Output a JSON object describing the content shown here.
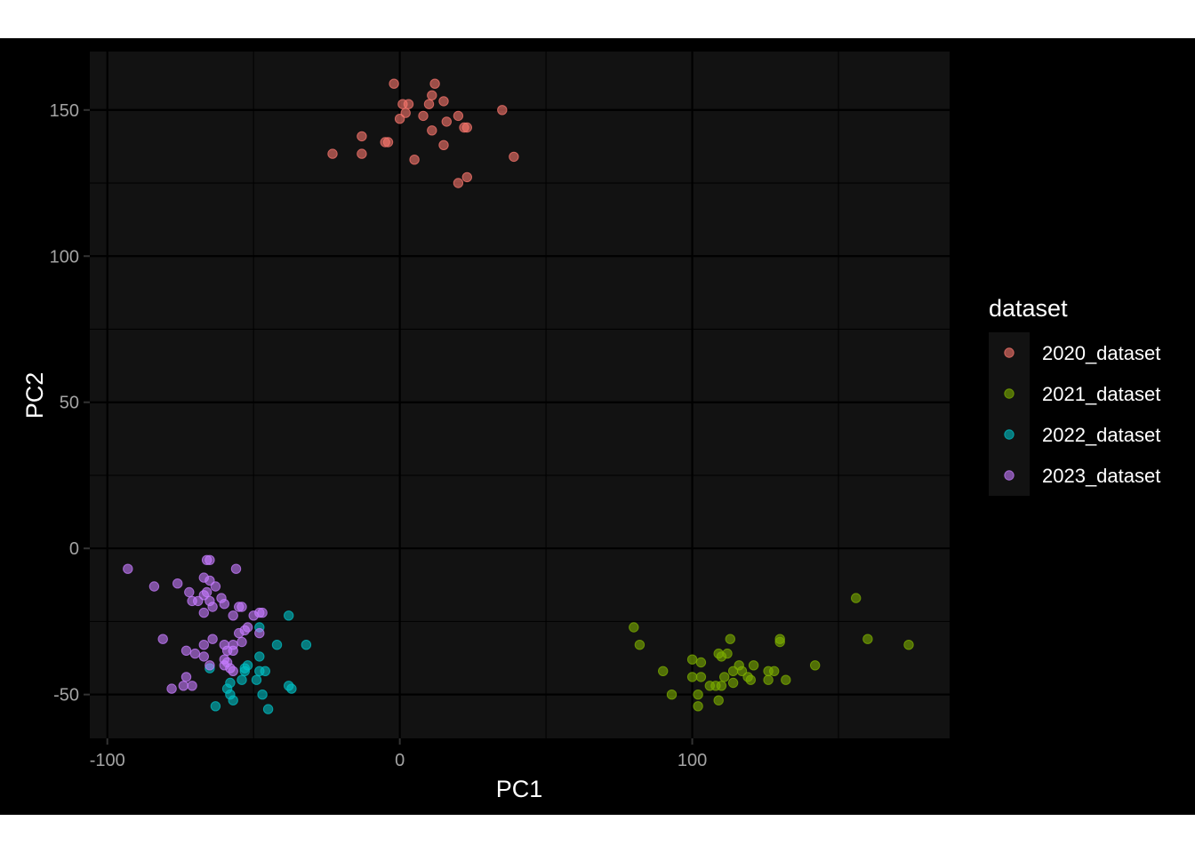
{
  "chart_data": {
    "type": "scatter",
    "title": "",
    "xlabel": "PC1",
    "ylabel": "PC2",
    "xlim": [
      -106,
      188
    ],
    "ylim": [
      -65,
      170
    ],
    "x_ticks": [
      -100,
      0,
      100
    ],
    "y_ticks": [
      -50,
      0,
      50,
      100,
      150
    ],
    "x_minor_ticks": [
      -50,
      50,
      150
    ],
    "y_minor_ticks": [
      -25,
      25,
      75,
      125
    ],
    "grid": true,
    "legend_title": "dataset",
    "legend_position": "right",
    "series": [
      {
        "name": "2020_dataset",
        "color": "#F8766D",
        "points": [
          [
            -2,
            159
          ],
          [
            12,
            159
          ],
          [
            11,
            155
          ],
          [
            15,
            153
          ],
          [
            10,
            152
          ],
          [
            1,
            152
          ],
          [
            3,
            152
          ],
          [
            2,
            149
          ],
          [
            8,
            148
          ],
          [
            35,
            150
          ],
          [
            20,
            148
          ],
          [
            0,
            147
          ],
          [
            16,
            146
          ],
          [
            22,
            144
          ],
          [
            23,
            144
          ],
          [
            11,
            143
          ],
          [
            -13,
            141
          ],
          [
            -4,
            139
          ],
          [
            -5,
            139
          ],
          [
            15,
            138
          ],
          [
            -23,
            135
          ],
          [
            -13,
            135
          ],
          [
            5,
            133
          ],
          [
            39,
            134
          ],
          [
            23,
            127
          ],
          [
            20,
            125
          ]
        ]
      },
      {
        "name": "2021_dataset",
        "color": "#7CAE00",
        "points": [
          [
            156,
            -17
          ],
          [
            80,
            -27
          ],
          [
            113,
            -31
          ],
          [
            130,
            -32
          ],
          [
            130,
            -31
          ],
          [
            160,
            -31
          ],
          [
            174,
            -33
          ],
          [
            82,
            -33
          ],
          [
            112,
            -36
          ],
          [
            109,
            -36
          ],
          [
            110,
            -37
          ],
          [
            100,
            -38
          ],
          [
            103,
            -39
          ],
          [
            116,
            -40
          ],
          [
            121,
            -40
          ],
          [
            142,
            -40
          ],
          [
            90,
            -42
          ],
          [
            114,
            -42
          ],
          [
            117,
            -42
          ],
          [
            126,
            -42
          ],
          [
            128,
            -42
          ],
          [
            100,
            -44
          ],
          [
            103,
            -44
          ],
          [
            111,
            -44
          ],
          [
            119,
            -44
          ],
          [
            120,
            -45
          ],
          [
            126,
            -45
          ],
          [
            132,
            -45
          ],
          [
            114,
            -46
          ],
          [
            106,
            -47
          ],
          [
            108,
            -47
          ],
          [
            110,
            -47
          ],
          [
            93,
            -50
          ],
          [
            102,
            -50
          ],
          [
            109,
            -52
          ],
          [
            102,
            -54
          ]
        ]
      },
      {
        "name": "2022_dataset",
        "color": "#00BFC4",
        "points": [
          [
            -38,
            -23
          ],
          [
            -48,
            -27
          ],
          [
            -32,
            -33
          ],
          [
            -42,
            -33
          ],
          [
            -48,
            -37
          ],
          [
            -52,
            -40
          ],
          [
            -53,
            -41
          ],
          [
            -46,
            -42
          ],
          [
            -48,
            -42
          ],
          [
            -53,
            -42
          ],
          [
            -65,
            -41
          ],
          [
            -54,
            -45
          ],
          [
            -49,
            -45
          ],
          [
            -58,
            -46
          ],
          [
            -38,
            -47
          ],
          [
            -37,
            -48
          ],
          [
            -59,
            -48
          ],
          [
            -47,
            -50
          ],
          [
            -58,
            -50
          ],
          [
            -57,
            -52
          ],
          [
            -63,
            -54
          ],
          [
            -45,
            -55
          ]
        ]
      },
      {
        "name": "2023_dataset",
        "color": "#C77CFF",
        "points": [
          [
            -93,
            -7
          ],
          [
            -65,
            -4
          ],
          [
            -66,
            -4
          ],
          [
            -56,
            -7
          ],
          [
            -67,
            -10
          ],
          [
            -65,
            -11
          ],
          [
            -84,
            -13
          ],
          [
            -76,
            -12
          ],
          [
            -63,
            -13
          ],
          [
            -72,
            -15
          ],
          [
            -66,
            -15
          ],
          [
            -67,
            -16
          ],
          [
            -61,
            -17
          ],
          [
            -71,
            -18
          ],
          [
            -69,
            -18
          ],
          [
            -65,
            -18
          ],
          [
            -60,
            -19
          ],
          [
            -55,
            -20
          ],
          [
            -54,
            -20
          ],
          [
            -64,
            -20
          ],
          [
            -47,
            -22
          ],
          [
            -48,
            -22
          ],
          [
            -50,
            -23
          ],
          [
            -57,
            -23
          ],
          [
            -67,
            -22
          ],
          [
            -52,
            -27
          ],
          [
            -53,
            -28
          ],
          [
            -48,
            -29
          ],
          [
            -55,
            -29
          ],
          [
            -81,
            -31
          ],
          [
            -64,
            -31
          ],
          [
            -54,
            -32
          ],
          [
            -57,
            -33
          ],
          [
            -67,
            -33
          ],
          [
            -60,
            -33
          ],
          [
            -57,
            -35
          ],
          [
            -59,
            -35
          ],
          [
            -73,
            -35
          ],
          [
            -70,
            -36
          ],
          [
            -67,
            -37
          ],
          [
            -60,
            -38
          ],
          [
            -59,
            -39
          ],
          [
            -60,
            -40
          ],
          [
            -65,
            -40
          ],
          [
            -58,
            -41
          ],
          [
            -57,
            -42
          ],
          [
            -73,
            -44
          ],
          [
            -74,
            -47
          ],
          [
            -71,
            -47
          ],
          [
            -78,
            -48
          ]
        ]
      }
    ]
  }
}
